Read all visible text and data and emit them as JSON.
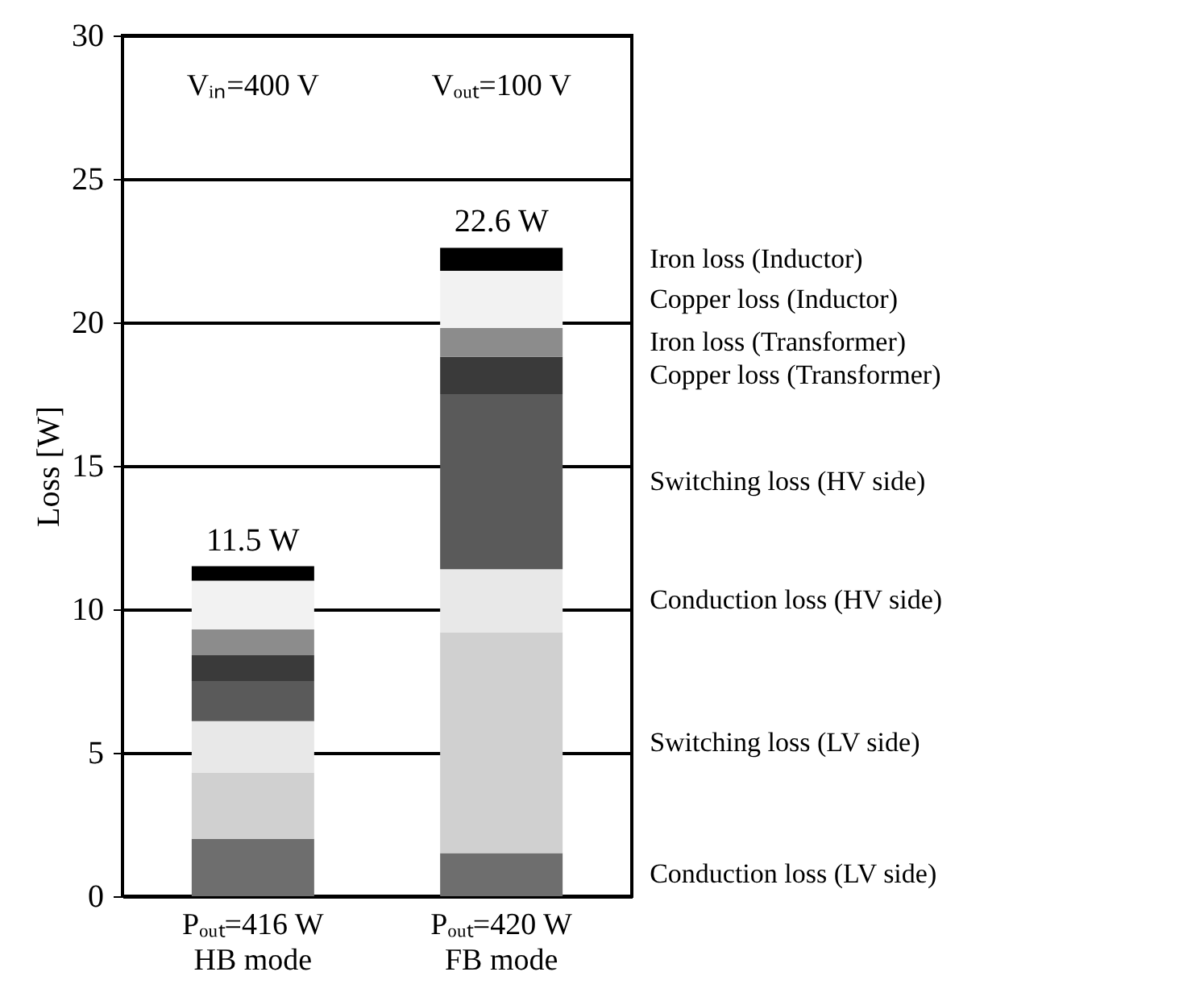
{
  "chart_data": {
    "type": "bar",
    "ylabel": "Loss [W]",
    "categories": [
      "Pₒᵤₜ=416 W\nHB mode",
      "Pₒᵤₜ=420 W\nFB mode"
    ],
    "stacked": true,
    "series": [
      {
        "name": "Conduction loss (LV side)",
        "color": "#6e6e6e",
        "values": [
          2.0,
          1.5
        ]
      },
      {
        "name": "Switching loss (LV side)",
        "color": "#d0d0d0",
        "values": [
          2.3,
          7.7
        ]
      },
      {
        "name": "Conduction loss (HV side)",
        "color": "#e8e8e8",
        "values": [
          1.8,
          2.2
        ]
      },
      {
        "name": "Switching loss (HV side)",
        "color": "#5a5a5a",
        "values": [
          1.4,
          6.1
        ]
      },
      {
        "name": "Copper loss (Transformer)",
        "color": "#3a3a3a",
        "values": [
          0.9,
          1.3
        ]
      },
      {
        "name": "Iron loss (Transformer)",
        "color": "#8c8c8c",
        "values": [
          0.9,
          1.0
        ]
      },
      {
        "name": "Copper loss (Inductor)",
        "color": "#f2f2f2",
        "values": [
          1.7,
          2.0
        ]
      },
      {
        "name": "Iron loss (Inductor)",
        "color": "#000000",
        "values": [
          0.5,
          0.8
        ]
      }
    ],
    "totals": [
      "11.5 W",
      "22.6 W"
    ],
    "annotations": [
      "Vᵢₙ=400 V",
      "Vₒᵤₜ=100 V"
    ],
    "ylim": [
      0,
      30
    ],
    "yticks": [
      0,
      5,
      10,
      15,
      20,
      25,
      30
    ],
    "grid": "y"
  }
}
